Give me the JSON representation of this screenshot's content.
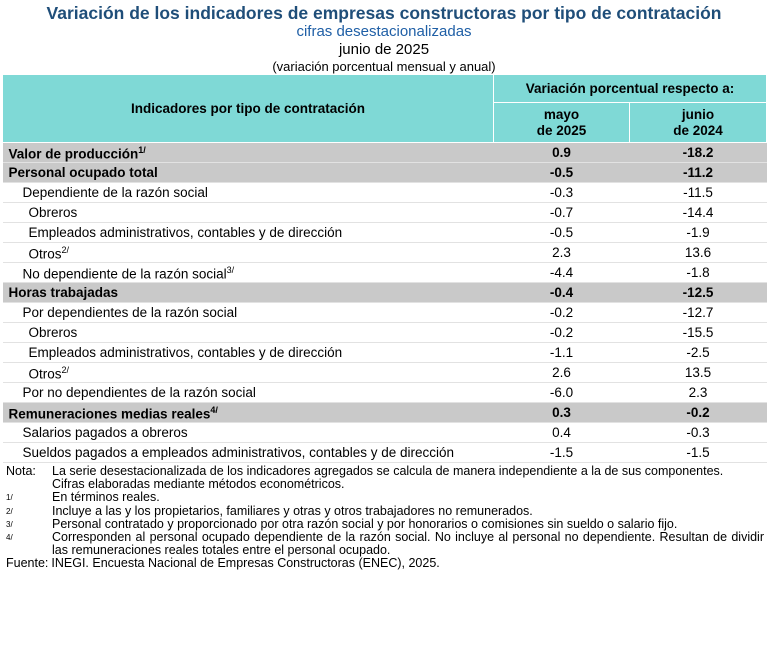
{
  "header": {
    "title": "Variación de los indicadores de empresas constructoras por tipo de contratación",
    "subtitle": "cifras desestacionalizadas",
    "period": "junio de 2025",
    "unit": "(variación porcentual mensual y anual)"
  },
  "table": {
    "label_header": "Indicadores por tipo de contratación",
    "group_header": "Variación porcentual respecto a:",
    "columns": [
      [
        "mayo",
        "de 2025"
      ],
      [
        "junio",
        "de 2024"
      ]
    ],
    "rows": [
      {
        "label": "Valor de producción",
        "note": "1/",
        "level": 0,
        "values": [
          "0.9",
          "-18.2"
        ]
      },
      {
        "label": "Personal ocupado total",
        "level": 0,
        "values": [
          "-0.5",
          "-11.2"
        ]
      },
      {
        "label": "Dependiente de la razón social",
        "level": 1,
        "values": [
          "-0.3",
          "-11.5"
        ]
      },
      {
        "label": "Obreros",
        "level": 2,
        "values": [
          "-0.7",
          "-14.4"
        ]
      },
      {
        "label": "Empleados administrativos, contables y de dirección",
        "level": 2,
        "values": [
          "-0.5",
          "-1.9"
        ]
      },
      {
        "label": "Otros",
        "note": "2/",
        "level": 2,
        "values": [
          "2.3",
          "13.6"
        ]
      },
      {
        "label": "No dependiente de la razón social",
        "note": "3/",
        "level": 1,
        "values": [
          "-4.4",
          "-1.8"
        ]
      },
      {
        "label": "Horas trabajadas",
        "level": 0,
        "values": [
          "-0.4",
          "-12.5"
        ]
      },
      {
        "label": "Por dependientes de la razón social",
        "level": 1,
        "values": [
          "-0.2",
          "-12.7"
        ]
      },
      {
        "label": "Obreros",
        "level": 2,
        "values": [
          "-0.2",
          "-15.5"
        ]
      },
      {
        "label": "Empleados administrativos, contables y de dirección",
        "level": 2,
        "values": [
          "-1.1",
          "-2.5"
        ]
      },
      {
        "label": "Otros",
        "note": "2/",
        "level": 2,
        "values": [
          "2.6",
          "13.5"
        ]
      },
      {
        "label": "Por no dependientes de la razón social",
        "level": 1,
        "values": [
          "-6.0",
          "2.3"
        ]
      },
      {
        "label": "Remuneraciones medias reales",
        "note": "4/",
        "level": 0,
        "values": [
          "0.3",
          "-0.2"
        ]
      },
      {
        "label": "Salarios pagados a obreros",
        "level": 1,
        "values": [
          "0.4",
          "-0.3"
        ]
      },
      {
        "label": "Sueldos pagados a empleados administrativos, contables y de dirección",
        "level": 1,
        "values": [
          "-1.5",
          "-1.5"
        ]
      }
    ]
  },
  "notes": [
    {
      "marker": "Nota:",
      "text": "La serie desestacionalizada de los indicadores agregados se calcula de manera independiente a la de sus componentes."
    },
    {
      "text": "Cifras elaboradas mediante métodos econométricos."
    },
    {
      "marker": "1/",
      "text": "En términos reales."
    },
    {
      "marker": "2/",
      "text": "Incluye a las y los propietarios, familiares y otras y otros trabajadores no remunerados."
    },
    {
      "marker": "3/",
      "text": "Personal contratado y proporcionado por otra razón social y por honorarios o comisiones sin sueldo o salario fijo."
    },
    {
      "marker": "4/",
      "text": "Corresponden al personal ocupado dependiente de la razón social. No incluye al personal no dependiente. Resultan de dividir las remuneraciones reales totales entre el personal ocupado."
    }
  ],
  "source": {
    "label": "Fuente:",
    "text": "INEGI. Encuesta Nacional de Empresas Constructoras (ENEC), 2025."
  }
}
